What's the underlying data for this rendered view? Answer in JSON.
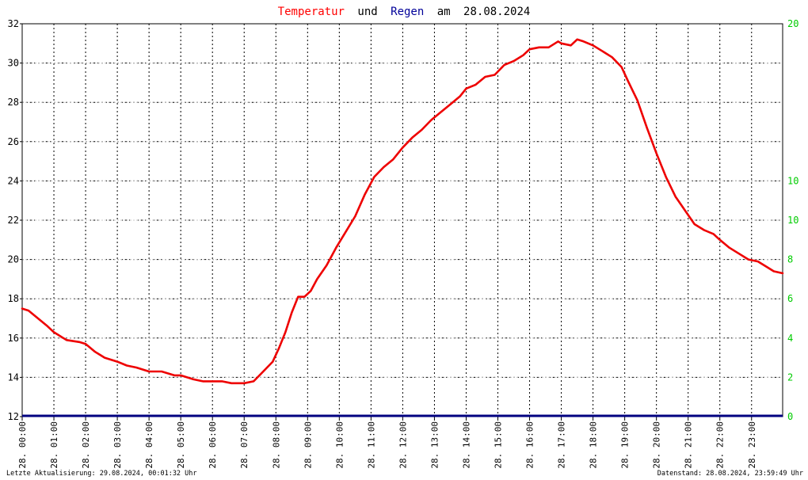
{
  "title": {
    "word_temp": "Temperatur",
    "word_und": "und",
    "word_regen": "Regen",
    "word_am": "am",
    "date": "28.08.2024"
  },
  "footer": {
    "left": "Letzte Aktualisierung: 29.08.2024, 00:01:32 Uhr",
    "right": "Datenstand: 28.08.2024, 23:59:49 Uhr"
  },
  "colors": {
    "temperature": "#ee0000",
    "rain": "#000080",
    "rain_axis": "#00cc00",
    "title_temp": "#ff0000",
    "title_regen": "#000099"
  },
  "chart_data": {
    "type": "line",
    "title": "Temperatur und Regen am 28.08.2024",
    "xlabel": "",
    "ylabel": "",
    "grid": true,
    "x_unit": "hour of day",
    "xlim": [
      0,
      23.98
    ],
    "ylim_left": [
      12,
      32
    ],
    "yticks_left": [
      "12",
      "14",
      "16",
      "18",
      "20",
      "22",
      "24",
      "26",
      "28",
      "30",
      "32"
    ],
    "ylim_right": [
      0,
      20
    ],
    "yticks_right": [
      "0",
      "2",
      "4",
      "6",
      "8",
      "10",
      "10",
      "20"
    ],
    "xtick_hours": [
      0,
      1,
      2,
      3,
      4,
      5,
      6,
      7,
      8,
      9,
      10,
      11,
      12,
      13,
      14,
      15,
      16,
      17,
      18,
      19,
      20,
      21,
      22,
      23
    ],
    "xtick_labels": [
      "28. 00:00",
      "28. 01:00",
      "28. 02:00",
      "28. 03:00",
      "28. 04:00",
      "28. 05:00",
      "28. 06:00",
      "28. 07:00",
      "28. 08:00",
      "28. 09:00",
      "28. 10:00",
      "28. 11:00",
      "28. 12:00",
      "28. 13:00",
      "28. 14:00",
      "28. 15:00",
      "28. 16:00",
      "28. 17:00",
      "28. 18:00",
      "28. 19:00",
      "28. 20:00",
      "28. 21:00",
      "28. 22:00",
      "28. 23:00"
    ],
    "series": [
      {
        "name": "Temperatur",
        "axis": "left",
        "x": [
          0,
          0.2,
          0.5,
          0.8,
          1.0,
          1.4,
          1.8,
          2.0,
          2.3,
          2.6,
          3.0,
          3.3,
          3.6,
          4.0,
          4.4,
          4.8,
          5.0,
          5.4,
          5.7,
          6.0,
          6.3,
          6.6,
          7.0,
          7.3,
          7.6,
          7.9,
          8.1,
          8.3,
          8.5,
          8.7,
          8.9,
          9.1,
          9.3,
          9.6,
          9.9,
          10.2,
          10.5,
          10.8,
          11.1,
          11.4,
          11.7,
          12.0,
          12.3,
          12.6,
          12.9,
          13.2,
          13.5,
          13.8,
          14.0,
          14.3,
          14.6,
          14.9,
          15.2,
          15.5,
          15.8,
          16.0,
          16.3,
          16.6,
          16.9,
          17.0,
          17.3,
          17.5,
          17.7,
          18.0,
          18.3,
          18.6,
          18.9,
          19.1,
          19.4,
          19.7,
          20.0,
          20.3,
          20.6,
          20.9,
          21.2,
          21.5,
          21.8,
          22.0,
          22.3,
          22.6,
          22.9,
          23.2,
          23.5,
          23.7,
          23.98
        ],
        "y": [
          17.5,
          17.4,
          17.0,
          16.6,
          16.3,
          15.9,
          15.8,
          15.7,
          15.3,
          15.0,
          14.8,
          14.6,
          14.5,
          14.3,
          14.3,
          14.1,
          14.1,
          13.9,
          13.8,
          13.8,
          13.8,
          13.7,
          13.7,
          13.8,
          14.3,
          14.8,
          15.5,
          16.3,
          17.3,
          18.1,
          18.1,
          18.4,
          19.0,
          19.7,
          20.6,
          21.4,
          22.2,
          23.3,
          24.2,
          24.7,
          25.1,
          25.7,
          26.2,
          26.6,
          27.1,
          27.5,
          27.9,
          28.3,
          28.7,
          28.9,
          29.3,
          29.4,
          29.9,
          30.1,
          30.4,
          30.7,
          30.8,
          30.8,
          31.1,
          31.0,
          30.9,
          31.2,
          31.1,
          30.9,
          30.6,
          30.3,
          29.8,
          29.1,
          28.1,
          26.7,
          25.4,
          24.2,
          23.2,
          22.5,
          21.8,
          21.5,
          21.3,
          21.0,
          20.6,
          20.3,
          20.0,
          19.9,
          19.6,
          19.4,
          19.3
        ]
      },
      {
        "name": "Regen",
        "axis": "right",
        "x": [
          0,
          23.98
        ],
        "y": [
          0,
          0
        ]
      }
    ]
  }
}
